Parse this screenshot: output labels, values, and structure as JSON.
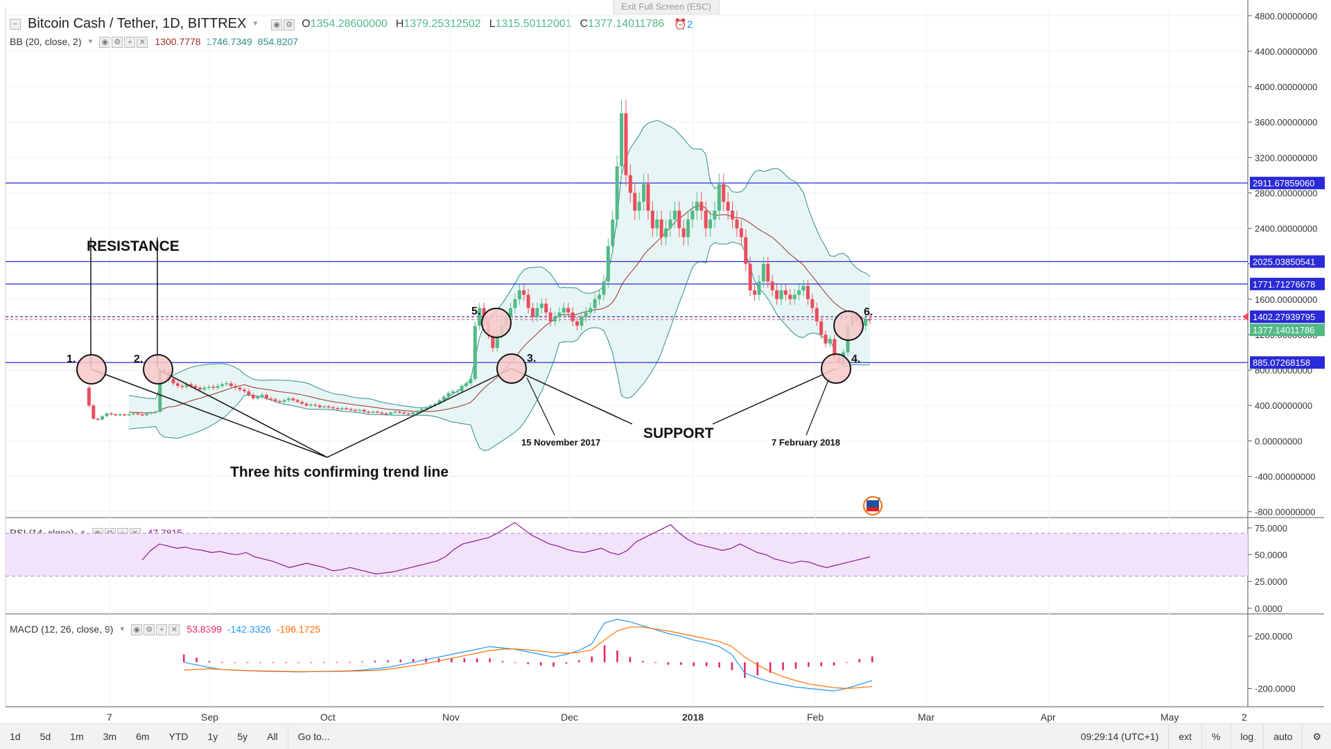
{
  "header": {
    "exit_fullscreen": "Exit Full Screen (ESC)",
    "symbol": "Bitcoin Cash / Tether, 1D, BITTREX",
    "o_label": "O",
    "o_value": "1354.28600000",
    "h_label": "H",
    "h_value": "1379.25312502",
    "l_label": "L",
    "l_value": "1315.50112001",
    "c_label": "C",
    "c_value": "1377.14011786",
    "alerts_count": "2"
  },
  "indicators": {
    "bb": {
      "label": "BB (20, close, 2)",
      "v1": "1300.7778",
      "v2": "1746.7349",
      "v3": "854.8207"
    },
    "rsi": {
      "label": "RSI (14, close)",
      "value": "47.7815"
    },
    "macd": {
      "label": "MACD (12, 26, close, 9)",
      "v1": "53.8399",
      "v2": "-142.3326",
      "v3": "-196.1725"
    }
  },
  "colors": {
    "up": "#53b987",
    "down": "#eb4d5c",
    "hline": "#2a2ad6",
    "bb_fill": "#e7f6f4",
    "bb_line": "#2f8c8c",
    "bb_basis": "#9b2c2c",
    "rsi": "#8e1599",
    "rsi_band": "#f3e3fa",
    "macd": "#2196f3",
    "signal": "#ff6d00",
    "hist": "#e91e63",
    "circle": "#f8c8c8"
  },
  "price_axis": {
    "ticks": [
      "4800.00000000",
      "4400.00000000",
      "4000.00000000",
      "3600.00000000",
      "3200.00000000",
      "2800.00000000",
      "2400.00000000",
      "2000.00000000",
      "1600.00000000",
      "1200.00000000",
      "800.00000000",
      "400.00000000",
      "0.00000000",
      "-400.00000000",
      "-800.00000000"
    ],
    "price_labels": [
      "2911.67859060",
      "2025.03850541",
      "1771.71276678",
      "1402.27939795",
      "1377.14011786",
      "885.07268158"
    ]
  },
  "rsi_axis": {
    "ticks": [
      "75.0000",
      "50.0000",
      "25.0000",
      "0.0000"
    ]
  },
  "macd_axis": {
    "ticks": [
      "200.0000",
      "-200.0000"
    ]
  },
  "time_axis": {
    "labels": [
      "7",
      "Sep",
      "Oct",
      "Nov",
      "Dec",
      "2018",
      "Feb",
      "Mar",
      "Apr",
      "May",
      "2"
    ]
  },
  "annotations": {
    "resistance": "RESISTANCE",
    "support": "SUPPORT",
    "trend": "Three hits confirming trend line",
    "date1": "15 November 2017",
    "date2": "7 February 2018",
    "n1": "1.",
    "n2": "2.",
    "n3": "3.",
    "n4": "4.",
    "n5": "5.",
    "n6": "6."
  },
  "toolbar": {
    "buttons": [
      "1d",
      "5d",
      "1m",
      "3m",
      "6m",
      "YTD",
      "1y",
      "5y",
      "All",
      "Go to..."
    ],
    "time": "09:29:14 (UTC+1)",
    "right": [
      "ext",
      "%",
      "log",
      "auto"
    ]
  },
  "chart_data": [
    {
      "type": "candlestick",
      "title": "Bitcoin Cash / Tether, 1D, BITTREX",
      "x_start": "2017-07-28",
      "ylim": [
        -800,
        4800
      ],
      "horizontal_levels": [
        2911.68,
        2025.04,
        1771.71,
        1402.28,
        885.07
      ],
      "close": [
        600,
        400,
        250,
        240,
        280,
        310,
        300,
        290,
        300,
        290,
        300,
        310,
        300,
        290,
        310,
        320,
        330,
        800,
        780,
        700,
        650,
        620,
        610,
        640,
        620,
        600,
        580,
        600,
        610,
        600,
        620,
        640,
        650,
        620,
        600,
        580,
        560,
        520,
        480,
        500,
        520,
        480,
        470,
        450,
        440,
        460,
        480,
        460,
        440,
        420,
        400,
        410,
        400,
        380,
        390,
        380,
        370,
        360,
        370,
        360,
        350,
        340,
        350,
        330,
        320,
        330,
        320,
        310,
        300,
        320,
        330,
        320,
        310,
        300,
        320,
        340,
        360,
        380,
        400,
        420,
        460,
        500,
        540,
        560,
        560,
        620,
        650,
        700,
        1300,
        1500,
        1350,
        1200,
        1050,
        1200,
        1300,
        1400,
        1500,
        1600,
        1700,
        1650,
        1500,
        1400,
        1500,
        1550,
        1450,
        1350,
        1400,
        1450,
        1500,
        1450,
        1350,
        1300,
        1400,
        1450,
        1500,
        1600,
        1650,
        1800,
        2200,
        2500,
        3100,
        3700,
        3000,
        2800,
        2600,
        2700,
        2900,
        2600,
        2400,
        2500,
        2300,
        2400,
        2500,
        2600,
        2400,
        2300,
        2500,
        2600,
        2700,
        2600,
        2400,
        2500,
        2600,
        2900,
        2700,
        2600,
        2500,
        2400,
        2300,
        2000,
        1700,
        1650,
        1800,
        2000,
        1800,
        1700,
        1600,
        1700,
        1650,
        1600,
        1650,
        1700,
        1750,
        1600,
        1500,
        1350,
        1200,
        1100,
        1150,
        950,
        885,
        1000,
        1300,
        1400,
        1350,
        1300,
        1380,
        1377
      ]
    },
    {
      "type": "line",
      "name": "RSI (14, close)",
      "ylim": [
        0,
        75
      ],
      "values": [
        45,
        54,
        60,
        58,
        56,
        57,
        55,
        54,
        52,
        53,
        51,
        50,
        52,
        48,
        46,
        44,
        41,
        38,
        40,
        42,
        40,
        38,
        35,
        36,
        38,
        36,
        34,
        32,
        33,
        34,
        36,
        38,
        40,
        42,
        44,
        48,
        55,
        60,
        62,
        64,
        66,
        70,
        75,
        80,
        74,
        68,
        64,
        60,
        58,
        55,
        53,
        52,
        54,
        56,
        52,
        50,
        54,
        62,
        66,
        70,
        74,
        78,
        70,
        64,
        60,
        58,
        56,
        54,
        56,
        60,
        56,
        52,
        50,
        46,
        44,
        42,
        44,
        43,
        40,
        38,
        40,
        42,
        44,
        46,
        48
      ]
    },
    {
      "type": "line",
      "name": "MACD (12, 26, close, 9)",
      "ylim": [
        -300,
        300
      ],
      "series": [
        {
          "name": "MACD",
          "values": [
            0,
            -20,
            -40,
            -55,
            -60,
            -65,
            -68,
            -70,
            -72,
            -74,
            -72,
            -70,
            -68,
            -66,
            -60,
            -50,
            -40,
            -20,
            0,
            20,
            40,
            60,
            80,
            100,
            120,
            110,
            100,
            80,
            60,
            40,
            60,
            90,
            140,
            300,
            330,
            310,
            280,
            250,
            220,
            200,
            170,
            150,
            120,
            60,
            -80,
            -120,
            -150,
            -170,
            -190,
            -200,
            -210,
            -220,
            -200,
            -170,
            -140
          ]
        },
        {
          "name": "Signal",
          "values": [
            -60,
            -55,
            -50,
            -55,
            -60,
            -64,
            -66,
            -68,
            -70,
            -72,
            -72,
            -71,
            -70,
            -68,
            -66,
            -62,
            -55,
            -40,
            -25,
            -10,
            10,
            30,
            50,
            70,
            90,
            100,
            102,
            95,
            85,
            75,
            70,
            75,
            95,
            170,
            240,
            270,
            270,
            255,
            240,
            220,
            200,
            180,
            160,
            120,
            40,
            -20,
            -70,
            -110,
            -140,
            -165,
            -180,
            -195,
            -200,
            -195,
            -185
          ]
        }
      ]
    }
  ]
}
